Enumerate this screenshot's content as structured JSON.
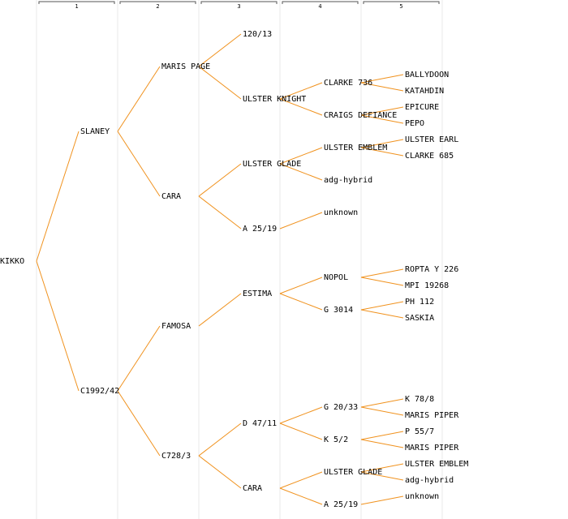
{
  "columns": [
    "1",
    "2",
    "3",
    "4",
    "5"
  ],
  "pedigree": {
    "label": "KIKKO",
    "parents": [
      {
        "label": "SLANEY",
        "parents": [
          {
            "label": "MARIS PAGE",
            "parents": [
              {
                "label": "120/13"
              },
              {
                "label": "ULSTER KNIGHT",
                "parents": [
                  {
                    "label": "CLARKE 736",
                    "parents": [
                      {
                        "label": "BALLYDOON"
                      },
                      {
                        "label": "KATAHDIN"
                      }
                    ]
                  },
                  {
                    "label": "CRAIGS DEFIANCE",
                    "parents": [
                      {
                        "label": "EPICURE"
                      },
                      {
                        "label": "PEPO"
                      }
                    ]
                  }
                ]
              }
            ]
          },
          {
            "label": "CARA",
            "parents": [
              {
                "label": "ULSTER GLADE",
                "parents": [
                  {
                    "label": "ULSTER EMBLEM",
                    "parents": [
                      {
                        "label": "ULSTER EARL"
                      },
                      {
                        "label": "CLARKE 685"
                      }
                    ]
                  },
                  {
                    "label": "adg-hybrid"
                  }
                ]
              },
              {
                "label": "A 25/19",
                "parents": [
                  {
                    "label": "unknown"
                  },
                  null
                ]
              }
            ]
          }
        ]
      },
      {
        "label": "C1992/42",
        "parents": [
          {
            "label": "FAMOSA",
            "parents": [
              {
                "label": "ESTIMA",
                "parents": [
                  {
                    "label": "NOPOL",
                    "parents": [
                      {
                        "label": "ROPTA Y 226"
                      },
                      {
                        "label": "MPI 19268"
                      }
                    ]
                  },
                  {
                    "label": "G 3014",
                    "parents": [
                      {
                        "label": "PH 112"
                      },
                      {
                        "label": "SASKIA"
                      }
                    ]
                  }
                ]
              },
              null
            ]
          },
          {
            "label": "C728/3",
            "parents": [
              {
                "label": "D 47/11",
                "parents": [
                  {
                    "label": "G 20/33",
                    "parents": [
                      {
                        "label": "K 78/8"
                      },
                      {
                        "label": "MARIS PIPER"
                      }
                    ]
                  },
                  {
                    "label": "K 5/2",
                    "parents": [
                      {
                        "label": "P 55/7"
                      },
                      {
                        "label": "MARIS PIPER"
                      }
                    ]
                  }
                ]
              },
              {
                "label": "CARA",
                "parents": [
                  {
                    "label": "ULSTER GLADE",
                    "parents": [
                      {
                        "label": "ULSTER EMBLEM"
                      },
                      {
                        "label": "adg-hybrid"
                      }
                    ]
                  },
                  {
                    "label": "A 25/19",
                    "parents": [
                      {
                        "label": "unknown"
                      },
                      null
                    ]
                  }
                ]
              }
            ]
          }
        ]
      }
    ]
  }
}
